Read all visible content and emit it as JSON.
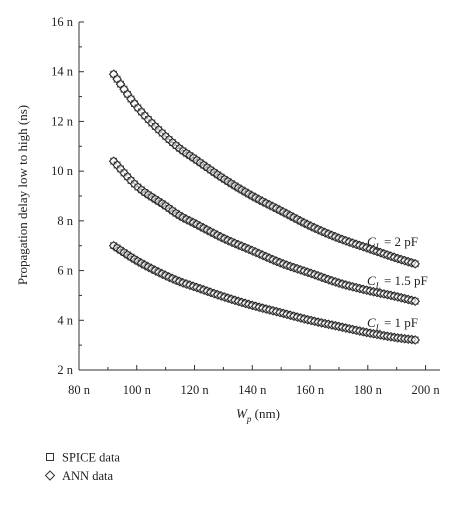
{
  "chart_data": {
    "type": "scatter",
    "xlabel_main": "W",
    "xlabel_sub": "p",
    "xlabel_unit": " (nm)",
    "ylabel": "Propagation delay low to high (ns)",
    "xlim": [
      80,
      205
    ],
    "ylim": [
      2,
      16
    ],
    "x_ticks": [
      80,
      100,
      120,
      140,
      160,
      180,
      200
    ],
    "x_tick_labels": [
      "80 n",
      "100 n",
      "120 n",
      "140 n",
      "160 n",
      "180 n",
      "200 n"
    ],
    "y_ticks": [
      2,
      4,
      6,
      8,
      10,
      12,
      14,
      16
    ],
    "y_tick_labels": [
      "2 n",
      "4 n",
      "6 n",
      "8 n",
      "10 n",
      "12 n",
      "14 n",
      "16 n"
    ],
    "x_range_data": [
      92,
      197
    ],
    "curve_labels": [
      {
        "main": "C",
        "sub": "L",
        "rest": " = 2 pF"
      },
      {
        "main": "C",
        "sub": "L",
        "rest": " = 1.5 pF"
      },
      {
        "main": "C",
        "sub": "L",
        "rest": " = 1 pF"
      }
    ],
    "series": [
      {
        "name": "SPICE data",
        "marker": "square"
      },
      {
        "name": "ANN data",
        "marker": "diamond"
      }
    ],
    "curves": [
      {
        "x": [
          92,
          100,
          110,
          115,
          120,
          130,
          140,
          150,
          160,
          170,
          180,
          190,
          197
        ],
        "y": [
          13.9,
          12.6,
          11.4,
          10.9,
          10.5,
          9.7,
          9.0,
          8.4,
          7.8,
          7.3,
          6.9,
          6.5,
          6.25
        ]
      },
      {
        "x": [
          92,
          100,
          110,
          115,
          120,
          130,
          140,
          150,
          160,
          170,
          180,
          190,
          197
        ],
        "y": [
          10.4,
          9.4,
          8.6,
          8.2,
          7.9,
          7.3,
          6.8,
          6.3,
          5.9,
          5.5,
          5.2,
          4.95,
          4.75
        ]
      },
      {
        "x": [
          92,
          100,
          110,
          115,
          120,
          130,
          140,
          150,
          160,
          170,
          180,
          190,
          197
        ],
        "y": [
          7.0,
          6.4,
          5.8,
          5.55,
          5.35,
          4.95,
          4.6,
          4.3,
          4.0,
          3.75,
          3.5,
          3.3,
          3.2
        ]
      }
    ],
    "grid": false,
    "legend_position": "bottom-left, below plot"
  }
}
